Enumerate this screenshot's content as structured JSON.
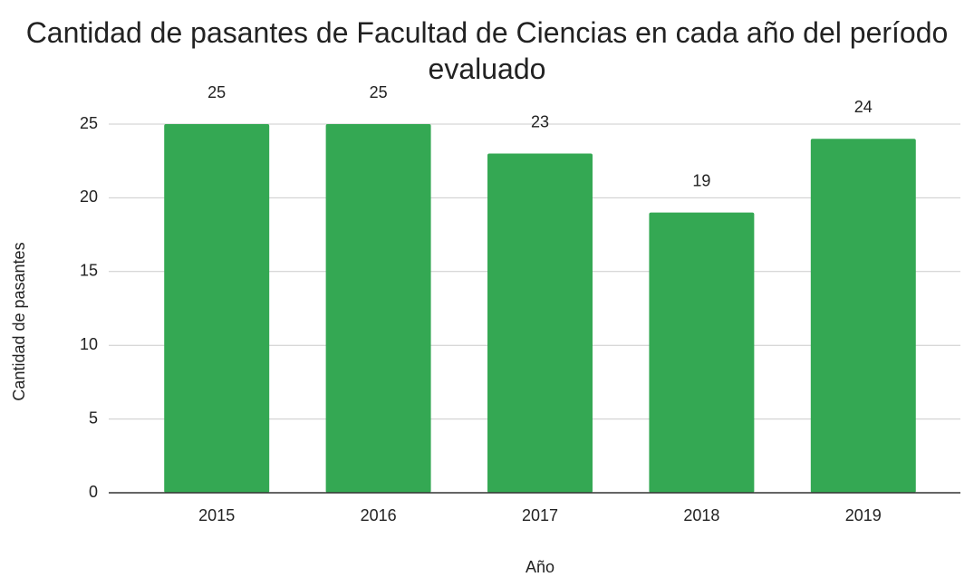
{
  "chart_data": {
    "type": "bar",
    "title": "Cantidad de pasantes de Facultad de Ciencias en cada año del período evaluado",
    "x_label": "Año",
    "y_label": "Cantidad de pasantes",
    "categories": [
      "2015",
      "2016",
      "2017",
      "2018",
      "2019"
    ],
    "values": [
      25,
      25,
      23,
      19,
      24
    ],
    "color": "#34a853",
    "ylim": [
      0,
      25
    ],
    "yticks": [
      0,
      5,
      10,
      15,
      20,
      25
    ],
    "grid": true
  }
}
